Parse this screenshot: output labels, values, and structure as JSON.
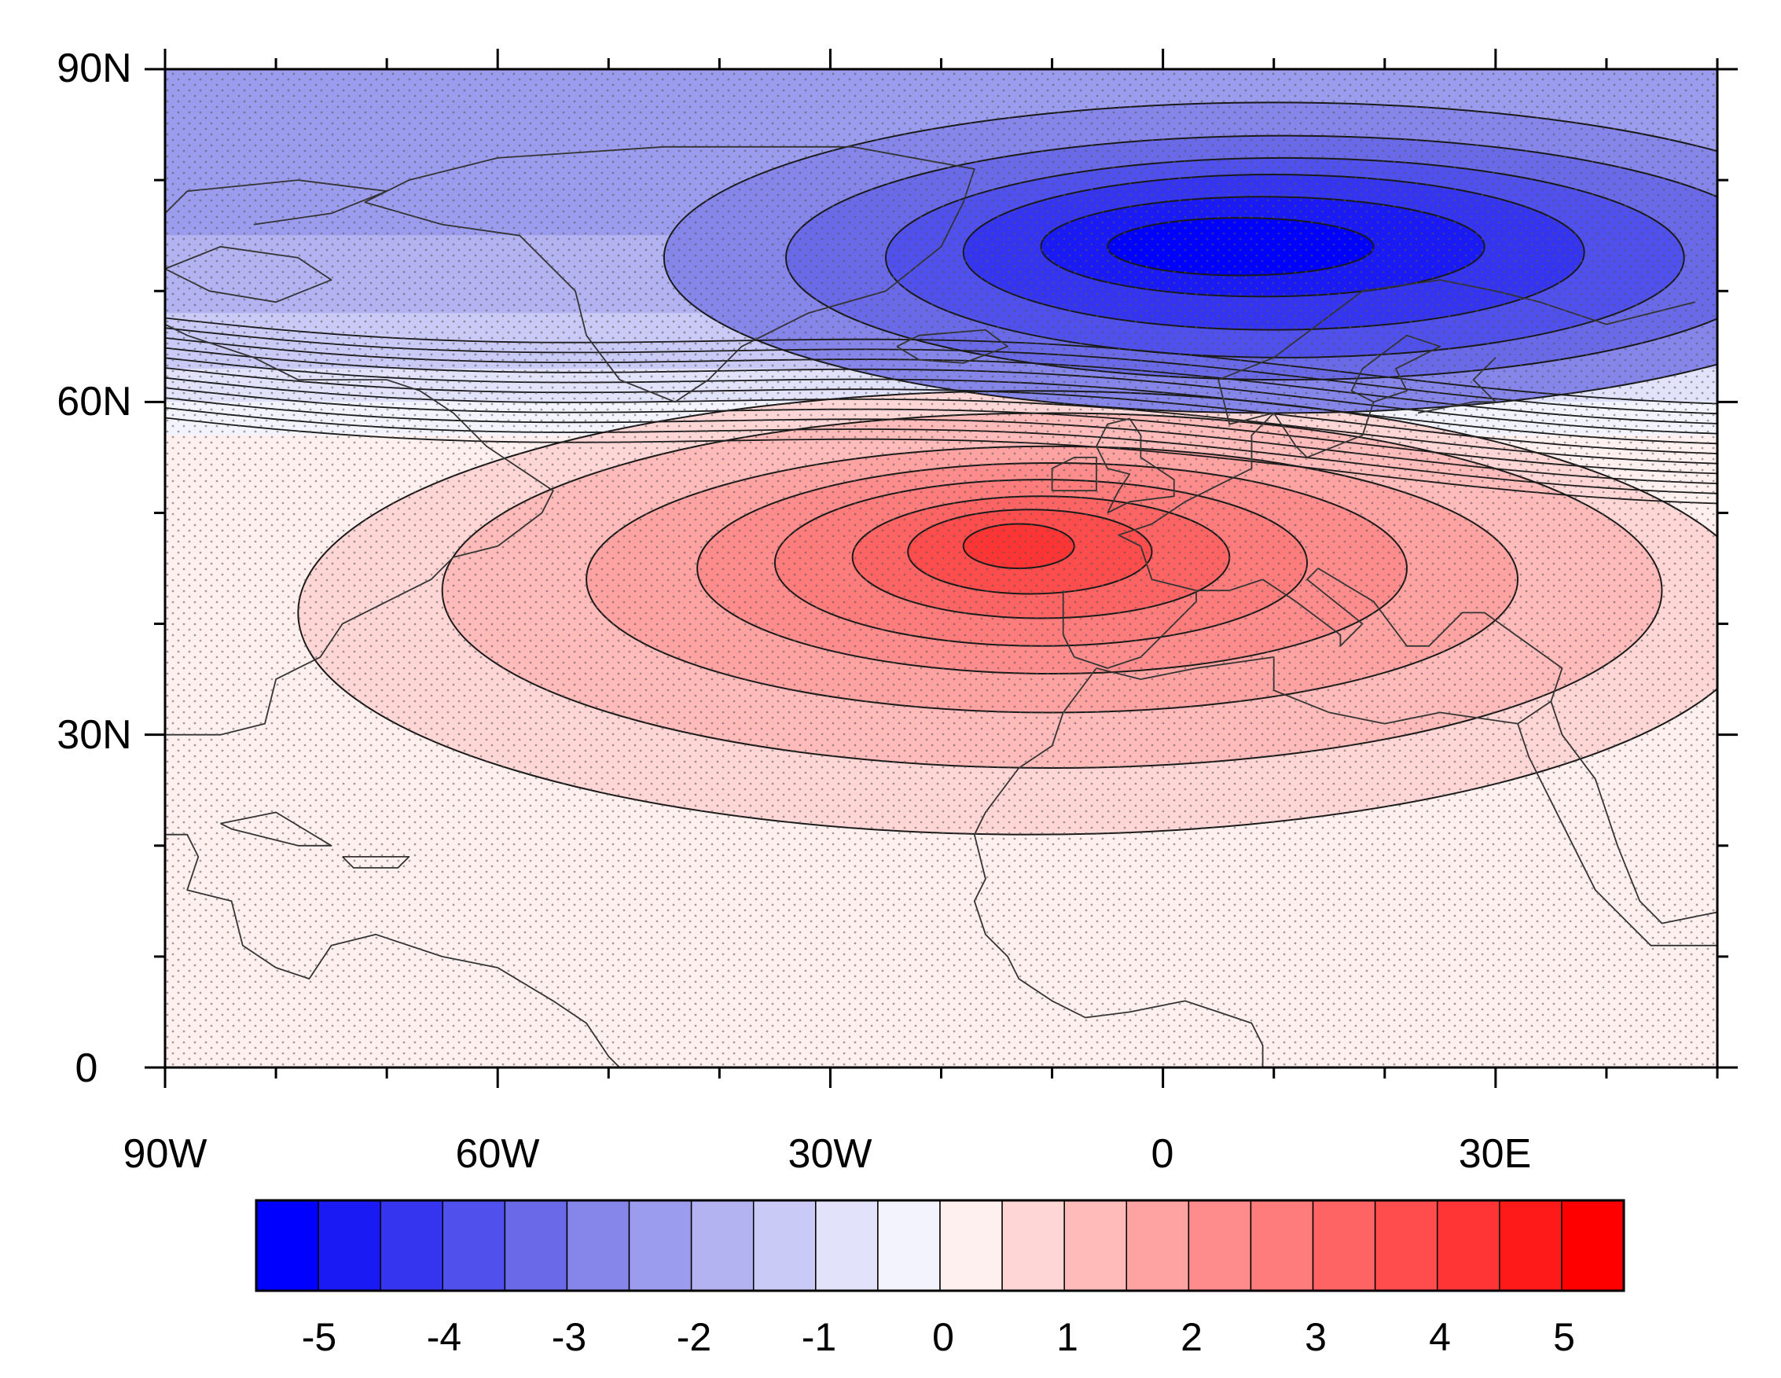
{
  "map": {
    "lat_labels": [
      "90N",
      "60N",
      "30N",
      "0"
    ],
    "lon_labels": [
      "90W",
      "60W",
      "30W",
      "0",
      "30E"
    ],
    "domain": {
      "lon_range": [
        -90,
        50
      ],
      "lat_range": [
        0,
        90
      ]
    },
    "stippling": true,
    "contour_line_color": "#1a1a1a",
    "coastline_color": "#333333"
  },
  "colorbar": {
    "tick_labels": [
      "-5",
      "-4",
      "-3",
      "-2",
      "-1",
      "0",
      "1",
      "2",
      "3",
      "4",
      "5"
    ],
    "colors": [
      "#0000ff",
      "#1a1af5",
      "#3535f0",
      "#5050ec",
      "#6a6ae8",
      "#8585ea",
      "#9c9cee",
      "#b3b3f2",
      "#cacaf7",
      "#e2e2fb",
      "#f3f3fe",
      "#fff0f0",
      "#ffd6d6",
      "#ffbaba",
      "#ffa2a2",
      "#ff8c8c",
      "#ff7c7c",
      "#ff6464",
      "#ff4c4c",
      "#ff3434",
      "#ff1a1a",
      "#ff0000"
    ]
  },
  "anomaly_pattern": {
    "negative_center": {
      "label": "blue",
      "lon": 5,
      "lat": 73,
      "approx_value": -5
    },
    "positive_center": {
      "label": "red",
      "lon": -12,
      "lat": 47,
      "approx_value": 5
    }
  }
}
